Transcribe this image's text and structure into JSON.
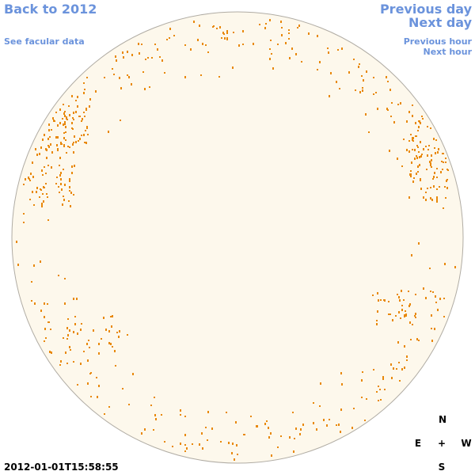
{
  "links": {
    "back": "Back to 2012",
    "facular": "See facular data",
    "previous_day": "Previous day",
    "next_day": "Next day",
    "previous_hour": "Previous hour",
    "next_hour": "Next hour"
  },
  "timestamp": "2012-01-01T15:58:55",
  "compass": {
    "north": "N",
    "east": "E",
    "center": "+",
    "west": "W",
    "south": "S"
  }
}
